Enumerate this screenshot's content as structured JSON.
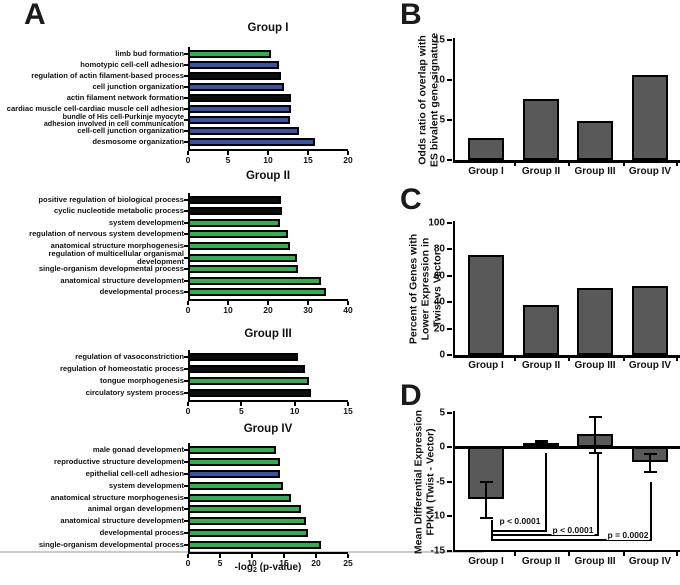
{
  "panels": {
    "a": "A",
    "b": "B",
    "c": "C",
    "d": "D"
  },
  "colors": {
    "green": "#2db14c",
    "blue": "#3853a4",
    "black": "#0d0d0d",
    "gray": "#595959",
    "outline": "#000000",
    "divider": "#c9c9c9"
  },
  "chart_data": [
    {
      "id": "group-i",
      "panel": "A",
      "type": "bar",
      "orientation": "horizontal",
      "title": "Group I",
      "xlim": [
        0,
        20
      ],
      "xticks": [
        0,
        5,
        10,
        15,
        20
      ],
      "bars": [
        {
          "label": "limb bud formation",
          "value": 10.4,
          "color": "green"
        },
        {
          "label": "homotypic cell-cell adhesion",
          "value": 11.4,
          "color": "blue"
        },
        {
          "label": "regulation of actin filament-based process",
          "value": 11.6,
          "color": "black"
        },
        {
          "label": "cell junction organization",
          "value": 12.0,
          "color": "blue"
        },
        {
          "label": "actin filament network formation",
          "value": 12.9,
          "color": "black"
        },
        {
          "label": "cardiac muscle cell-cardiac muscle cell adhesion",
          "value": 12.9,
          "color": "blue"
        },
        {
          "label": "bundle of His cell-Purkinje myocyte\nadhesion involved in cell communication",
          "value": 12.8,
          "color": "blue"
        },
        {
          "label": "cell-cell junction organization",
          "value": 13.9,
          "color": "blue"
        },
        {
          "label": "desmosome organization",
          "value": 15.9,
          "color": "blue"
        }
      ]
    },
    {
      "id": "group-ii",
      "panel": "A",
      "type": "bar",
      "orientation": "horizontal",
      "title": "Group II",
      "xlim": [
        0,
        40
      ],
      "xticks": [
        0,
        10,
        20,
        30,
        40
      ],
      "bars": [
        {
          "label": "positive regulation of biological process",
          "value": 23.3,
          "color": "black"
        },
        {
          "label": "cyclic nucleotide metabolic process",
          "value": 23.5,
          "color": "black"
        },
        {
          "label": "system development",
          "value": 23.0,
          "color": "green"
        },
        {
          "label": "regulation of nervous system development",
          "value": 25.0,
          "color": "green"
        },
        {
          "label": "anatomical structure morphogenesis",
          "value": 25.5,
          "color": "green"
        },
        {
          "label": "regulation of multicellular organismal development",
          "value": 27.3,
          "color": "green"
        },
        {
          "label": "single-organism developmental process",
          "value": 27.5,
          "color": "green"
        },
        {
          "label": "anatomical structure development",
          "value": 33.3,
          "color": "green"
        },
        {
          "label": "developmental process",
          "value": 34.5,
          "color": "green"
        }
      ]
    },
    {
      "id": "group-iii",
      "panel": "A",
      "type": "bar",
      "orientation": "horizontal",
      "title": "Group III",
      "xlim": [
        0,
        15
      ],
      "xticks": [
        0,
        5,
        10,
        15
      ],
      "bars": [
        {
          "label": "regulation of vasoconstriction",
          "value": 10.3,
          "color": "black"
        },
        {
          "label": "regulation of homeostatic process",
          "value": 11.0,
          "color": "black"
        },
        {
          "label": "tongue morphogenesis",
          "value": 11.3,
          "color": "green"
        },
        {
          "label": "circulatory system process",
          "value": 11.5,
          "color": "black"
        }
      ]
    },
    {
      "id": "group-iv",
      "panel": "A",
      "type": "bar",
      "orientation": "horizontal",
      "title": "Group IV",
      "xlim": [
        0,
        25
      ],
      "xticks": [
        0,
        5,
        10,
        15,
        20,
        25
      ],
      "xlabel_parts": {
        "prefix": "-log",
        "sub": "2",
        "suffix": " (p-value)"
      },
      "bars": [
        {
          "label": "male gonad development",
          "value": 13.7,
          "color": "green"
        },
        {
          "label": "reproductive structure development",
          "value": 14.4,
          "color": "green"
        },
        {
          "label": "epithelial cell-cell adhesion",
          "value": 14.3,
          "color": "blue"
        },
        {
          "label": "system development",
          "value": 14.9,
          "color": "green"
        },
        {
          "label": "anatomical structure morphogenesis",
          "value": 16.1,
          "color": "green"
        },
        {
          "label": "animal organ development",
          "value": 17.7,
          "color": "green"
        },
        {
          "label": "anatomical structure development",
          "value": 18.4,
          "color": "green"
        },
        {
          "label": "developmental process",
          "value": 18.8,
          "color": "green"
        },
        {
          "label": "single-organism developmental process",
          "value": 20.8,
          "color": "green"
        }
      ]
    },
    {
      "id": "panel-b",
      "panel": "B",
      "type": "bar",
      "orientation": "vertical",
      "ylabel_lines": [
        "Odds ratio of overlap with",
        "ES bivalent gene signature"
      ],
      "ylim": [
        0,
        15
      ],
      "yticks": [
        0,
        5,
        10,
        15
      ],
      "categories": [
        "Group I",
        "Group II",
        "Group III",
        "Group IV"
      ],
      "values": [
        2.7,
        7.6,
        4.9,
        10.6
      ]
    },
    {
      "id": "panel-c",
      "panel": "C",
      "type": "bar",
      "orientation": "vertical",
      "ylabel_lines": [
        "Percent of Genes with",
        "Lower Expression in",
        "Twist vs Vector"
      ],
      "ylim": [
        0,
        100
      ],
      "yticks": [
        0,
        20,
        40,
        60,
        80,
        100
      ],
      "categories": [
        "Group I",
        "Group II",
        "Group III",
        "Group IV"
      ],
      "values": [
        76,
        38,
        51,
        52
      ]
    },
    {
      "id": "panel-d",
      "panel": "D",
      "type": "bar",
      "orientation": "vertical",
      "ylabel_lines": [
        "Mean Differential Expression",
        "FPKM (Twist - Vector)"
      ],
      "ylim": [
        -15,
        5
      ],
      "yticks": [
        5,
        0,
        -5,
        -10,
        -15
      ],
      "categories": [
        "Group I",
        "Group II",
        "Group III",
        "Group IV"
      ],
      "bars": [
        {
          "category": "Group I",
          "value": -7.6,
          "err_lo": -10.3,
          "err_hi": -5.0
        },
        {
          "category": "Group II",
          "value": 0.55,
          "err_lo": 0.3,
          "err_hi": 0.8
        },
        {
          "category": "Group III",
          "value": 1.9,
          "err_lo": -0.8,
          "err_hi": 4.4
        },
        {
          "category": "Group IV",
          "value": -2.2,
          "err_lo": -3.6,
          "err_hi": -1.0
        }
      ],
      "comparisons": [
        {
          "from": "Group I",
          "to": "Group II",
          "label": "p < 0.0001"
        },
        {
          "from": "Group I",
          "to": "Group III",
          "label": "p < 0.0001"
        },
        {
          "from": "Group I",
          "to": "Group IV",
          "label": "p = 0.0002"
        }
      ]
    }
  ]
}
